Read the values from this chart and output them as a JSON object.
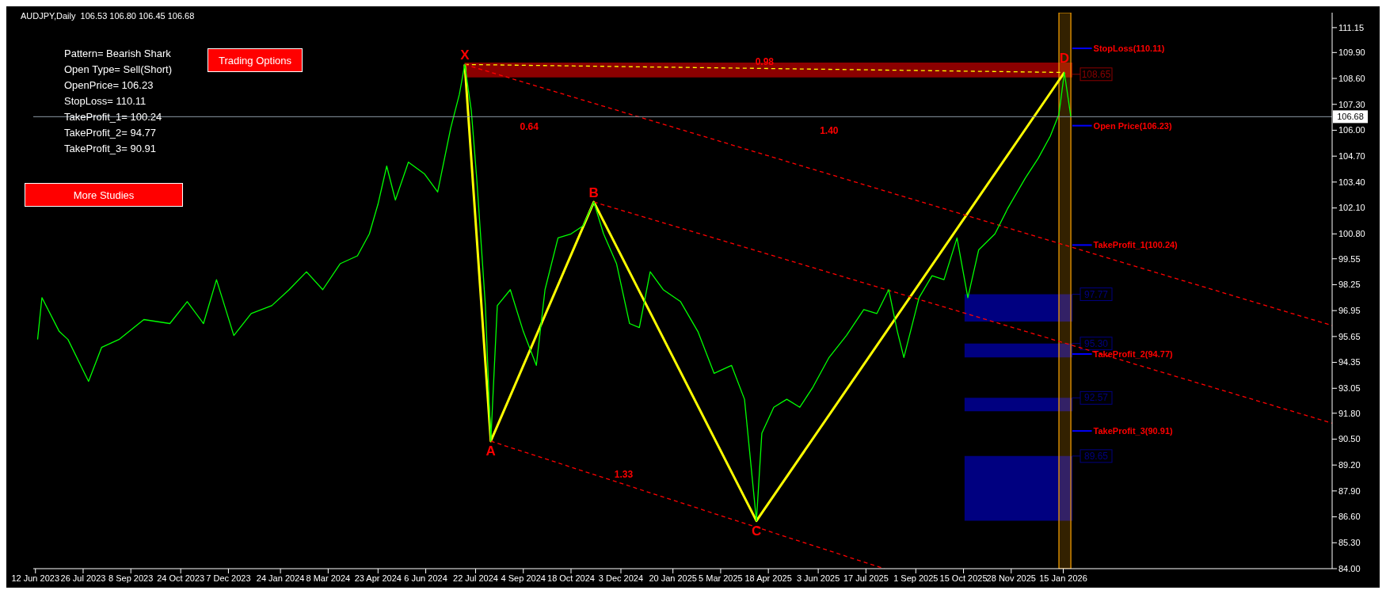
{
  "chart_data": {
    "type": "line",
    "title": "AUDJPY,Daily  106.53 106.80 106.45 106.68",
    "xlim": [
      "2023-06-10",
      "2026-09-20"
    ],
    "ylim": [
      84,
      111.9
    ],
    "xticks": [
      {
        "value": "2023-06-12",
        "label": "12 Jun 2023"
      },
      {
        "value": "2023-07-26",
        "label": "26 Jul 2023"
      },
      {
        "value": "2023-09-08",
        "label": "8 Sep 2023"
      },
      {
        "value": "2023-10-24",
        "label": "24 Oct 2023"
      },
      {
        "value": "2023-12-07",
        "label": "7 Dec 2023"
      },
      {
        "value": "2024-01-24",
        "label": "24 Jan 2024"
      },
      {
        "value": "2024-03-08",
        "label": "8 Mar 2024"
      },
      {
        "value": "2024-04-23",
        "label": "23 Apr 2024"
      },
      {
        "value": "2024-06-06",
        "label": "6 Jun 2024"
      },
      {
        "value": "2024-07-22",
        "label": "22 Jul 2024"
      },
      {
        "value": "2024-09-04",
        "label": "4 Sep 2024"
      },
      {
        "value": "2024-10-18",
        "label": "18 Oct 2024"
      },
      {
        "value": "2024-12-03",
        "label": "3 Dec 2024"
      },
      {
        "value": "2025-01-20",
        "label": "20 Jan 2025"
      },
      {
        "value": "2025-03-05",
        "label": "5 Mar 2025"
      },
      {
        "value": "2025-04-18",
        "label": "18 Apr 2025"
      },
      {
        "value": "2025-06-03",
        "label": "3 Jun 2025"
      },
      {
        "value": "2025-07-17",
        "label": "17 Jul 2025"
      },
      {
        "value": "2025-09-01",
        "label": "1 Sep 2025"
      },
      {
        "value": "2025-10-15",
        "label": "15 Oct 2025"
      },
      {
        "value": "2025-11-28",
        "label": "28 Nov 2025"
      },
      {
        "value": "2026-01-15",
        "label": "15 Jan 2026"
      }
    ],
    "yticks": [
      {
        "value": 84,
        "label": "84.00"
      },
      {
        "value": 85.3,
        "label": "85.30"
      },
      {
        "value": 86.6,
        "label": "86.60"
      },
      {
        "value": 87.9,
        "label": "87.90"
      },
      {
        "value": 89.2,
        "label": "89.20"
      },
      {
        "value": 90.5,
        "label": "90.50"
      },
      {
        "value": 91.8,
        "label": "91.80"
      },
      {
        "value": 93.05,
        "label": "93.05"
      },
      {
        "value": 94.35,
        "label": "94.35"
      },
      {
        "value": 95.65,
        "label": "95.65"
      },
      {
        "value": 96.95,
        "label": "96.95"
      },
      {
        "value": 98.25,
        "label": "98.25"
      },
      {
        "value": 99.55,
        "label": "99.55"
      },
      {
        "value": 100.8,
        "label": "100.80"
      },
      {
        "value": 102.1,
        "label": "102.10"
      },
      {
        "value": 103.4,
        "label": "103.40"
      },
      {
        "value": 104.7,
        "label": "104.70"
      },
      {
        "value": 106,
        "label": "106.00"
      },
      {
        "value": 107.3,
        "label": "107.30"
      },
      {
        "value": 108.6,
        "label": "108.60"
      },
      {
        "value": 109.9,
        "label": "109.90"
      },
      {
        "value": 111.15,
        "label": "111.15"
      }
    ],
    "marker": "none",
    "series": [
      {
        "color": "#00ff00",
        "x": [
          "2023-06-14",
          "2023-06-18",
          "2023-07-04",
          "2023-07-12",
          "2023-07-31",
          "2023-08-12",
          "2023-08-28",
          "2023-09-20",
          "2023-10-14",
          "2023-10-30",
          "2023-11-14",
          "2023-11-26",
          "2023-12-12",
          "2023-12-28",
          "2024-01-16",
          "2024-02-01",
          "2024-02-17",
          "2024-03-03",
          "2024-03-19",
          "2024-04-04",
          "2024-04-15",
          "2024-04-23",
          "2024-05-01",
          "2024-05-09",
          "2024-05-21",
          "2024-06-05",
          "2024-06-17",
          "2024-06-29",
          "2024-07-07",
          "2024-07-12",
          "2024-07-18",
          "2024-07-23",
          "2024-07-31",
          "2024-08-05",
          "2024-08-11",
          "2024-08-23",
          "2024-09-04",
          "2024-09-16",
          "2024-09-24",
          "2024-10-06",
          "2024-10-18",
          "2024-10-29",
          "2024-11-08",
          "2024-11-17",
          "2024-11-29",
          "2024-12-11",
          "2024-12-20",
          "2024-12-30",
          "2025-01-11",
          "2025-01-27",
          "2025-02-12",
          "2025-02-27",
          "2025-03-15",
          "2025-03-27",
          "2025-04-07",
          "2025-04-12",
          "2025-04-23",
          "2025-05-05",
          "2025-05-17",
          "2025-05-29",
          "2025-06-13",
          "2025-06-29",
          "2025-07-15",
          "2025-07-27",
          "2025-08-07",
          "2025-08-15",
          "2025-08-21",
          "2025-09-04",
          "2025-09-16",
          "2025-09-27",
          "2025-10-09",
          "2025-10-19",
          "2025-10-29",
          "2025-11-13",
          "2025-11-25",
          "2025-12-11",
          "2025-12-23",
          "2026-01-03",
          "2026-01-11",
          "2026-01-16",
          "2026-01-22"
        ],
        "values": [
          95.5,
          97.6,
          95.9,
          95.5,
          93.4,
          95.1,
          95.5,
          96.5,
          96.3,
          97.4,
          96.3,
          98.5,
          95.7,
          96.8,
          97.2,
          98.0,
          98.9,
          98.0,
          99.3,
          99.7,
          100.8,
          102.3,
          104.2,
          102.5,
          104.4,
          103.8,
          102.9,
          106.1,
          107.8,
          109.3,
          107.0,
          103.6,
          97.2,
          90.4,
          97.2,
          98.0,
          95.9,
          94.2,
          98.0,
          100.6,
          100.8,
          101.2,
          102.4,
          100.8,
          99.3,
          96.3,
          96.1,
          98.9,
          98.0,
          97.4,
          95.9,
          93.8,
          94.2,
          92.5,
          86.4,
          90.8,
          92.1,
          92.5,
          92.1,
          93.1,
          94.6,
          95.7,
          97.0,
          96.8,
          98.0,
          95.9,
          94.6,
          97.6,
          98.7,
          98.5,
          100.6,
          97.6,
          100.0,
          100.8,
          102.1,
          103.6,
          104.6,
          105.7,
          106.8,
          108.9,
          106.68
        ]
      },
      {
        "color": "#ffff00",
        "x": [
          "2024-07-12",
          "2024-08-05",
          "2024-11-08",
          "2025-04-07",
          "2026-01-16"
        ],
        "values": [
          109.3,
          90.4,
          102.4,
          86.4,
          108.9
        ]
      },
      {
        "color": "#ffff00",
        "line_style": "dashed",
        "x": [
          "2024-07-12",
          "2026-01-16"
        ],
        "values": [
          109.3,
          108.9
        ]
      },
      {
        "color": "#ff0000",
        "line_style": "dashed",
        "x": [
          "2024-07-12",
          "2026-09-20"
        ],
        "values": [
          109.3,
          96.2
        ]
      },
      {
        "color": "#ff0000",
        "line_style": "dashed",
        "x": [
          "2024-11-08",
          "2026-09-20"
        ],
        "values": [
          102.4,
          91.3
        ]
      },
      {
        "color": "#ff0000",
        "line_style": "dashed",
        "x": [
          "2024-08-05",
          "2025-08-03"
        ],
        "values": [
          90.4,
          84.0
        ]
      }
    ],
    "bands": [
      {
        "axis": "y",
        "from": 108.65,
        "to": 109.4,
        "label": "108.65",
        "color": "#8b0000"
      },
      {
        "axis": "y",
        "from": 96.4,
        "to": 97.77,
        "label": "97.77",
        "color": "#000080"
      },
      {
        "axis": "y",
        "from": 94.6,
        "to": 95.3,
        "label": "95.30",
        "color": "#000080"
      },
      {
        "axis": "y",
        "from": 91.9,
        "to": 92.57,
        "label": "92.57",
        "color": "#000080"
      },
      {
        "axis": "y",
        "from": 86.4,
        "to": 89.65,
        "label": "89.65",
        "color": "#000080"
      },
      {
        "axis": "x",
        "from": "2026-01-11",
        "to": "2026-01-22",
        "color": "#ffa500"
      }
    ],
    "ref_lines": [
      {
        "axis": "y",
        "value": 110.11,
        "label": "StopLoss(110.11)",
        "color": "#0000ff"
      },
      {
        "axis": "y",
        "value": 106.23,
        "label": "Open Price(106.23)",
        "color": "#0000ff"
      },
      {
        "axis": "y",
        "value": 100.24,
        "label": "TakeProfit_1(100.24)",
        "color": "#0000ff"
      },
      {
        "axis": "y",
        "value": 94.77,
        "label": "TakeProfit_2(94.77)",
        "color": "#0000ff"
      },
      {
        "axis": "y",
        "value": 90.91,
        "label": "TakeProfit_3(90.91)",
        "color": "#0000ff"
      },
      {
        "axis": "y",
        "value": 106.68,
        "label": "106.68",
        "color": "#8c9aa6"
      }
    ],
    "annotations": [
      "Pattern= Bearish Shark",
      "Open Type= Sell(Short)",
      "OpenPrice= 106.23",
      "StopLoss= 110.11",
      "TakeProfit_1= 100.24",
      "TakeProfit_2= 94.77",
      "TakeProfit_3= 90.91",
      "Trading Options",
      "More Studies",
      {
        "text": "X",
        "x": "2024-07-12",
        "y": 109.3
      },
      {
        "text": "A",
        "x": "2024-08-05",
        "y": 90.4
      },
      {
        "text": "B",
        "x": "2024-11-08",
        "y": 102.4
      },
      {
        "text": "C",
        "x": "2025-04-07",
        "y": 86.4
      },
      {
        "text": "D",
        "x": "2026-01-16",
        "y": 108.9
      },
      "0.98",
      "0.64",
      "1.40",
      "1.33"
    ]
  }
}
